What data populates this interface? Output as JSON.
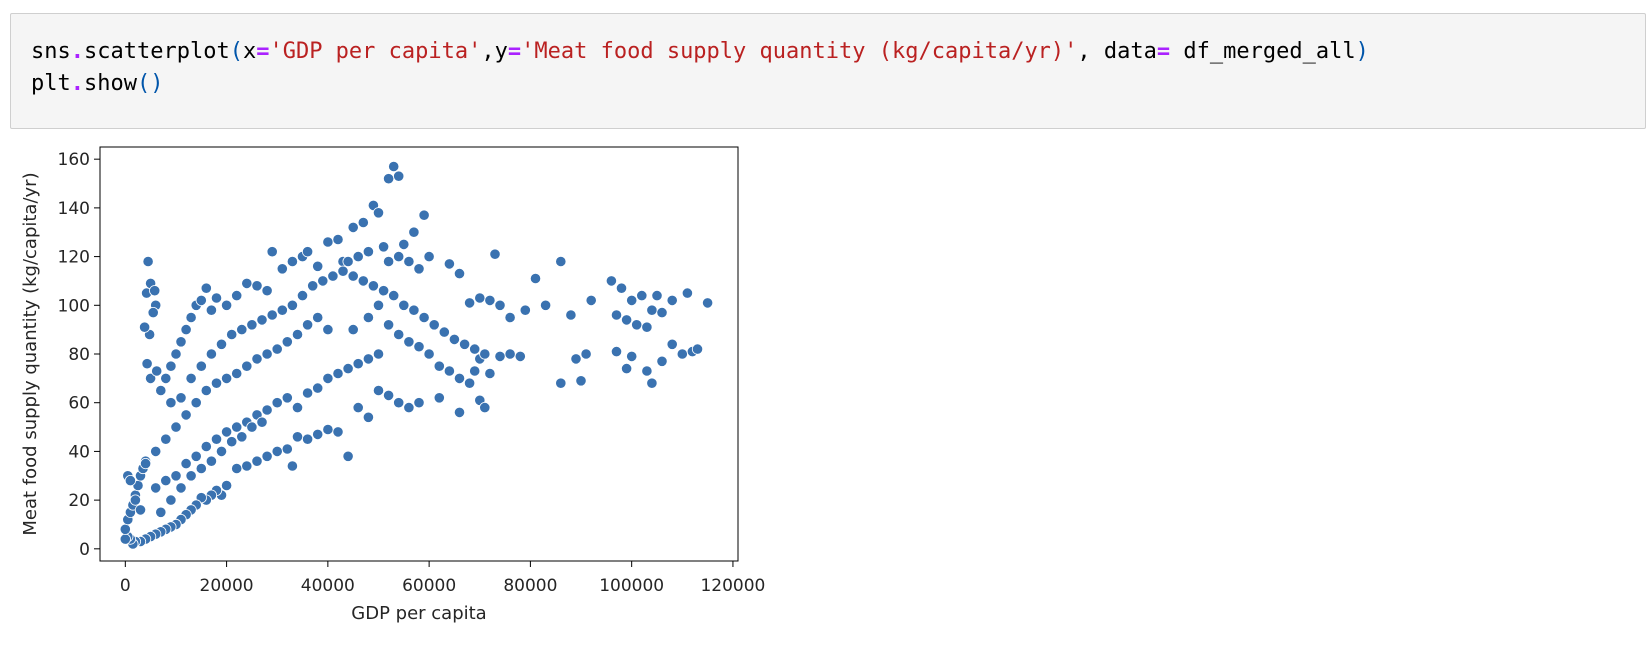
{
  "notebook": {
    "code_lines": [
      {
        "tokens": [
          {
            "text": "sns",
            "cls": "plain"
          },
          {
            "text": ".",
            "cls": "op"
          },
          {
            "text": "scatterplot",
            "cls": "plain"
          },
          {
            "text": "(",
            "cls": "par"
          },
          {
            "text": "x",
            "cls": "plain"
          },
          {
            "text": "=",
            "cls": "op"
          },
          {
            "text": "'GDP per capita'",
            "cls": "str"
          },
          {
            "text": ",",
            "cls": "plain"
          },
          {
            "text": "y",
            "cls": "plain"
          },
          {
            "text": "=",
            "cls": "op"
          },
          {
            "text": "'Meat food supply quantity (kg/capita/yr)'",
            "cls": "str"
          },
          {
            "text": ", ",
            "cls": "plain"
          },
          {
            "text": "data",
            "cls": "plain"
          },
          {
            "text": "=",
            "cls": "op"
          },
          {
            "text": " df_merged_all",
            "cls": "plain"
          },
          {
            "text": ")",
            "cls": "par"
          }
        ]
      },
      {
        "tokens": [
          {
            "text": "plt",
            "cls": "plain"
          },
          {
            "text": ".",
            "cls": "op"
          },
          {
            "text": "show",
            "cls": "plain"
          },
          {
            "text": "()",
            "cls": "par"
          }
        ]
      }
    ]
  },
  "colors": {
    "point_fill": "#3a72b0",
    "point_edge": "#ffffff",
    "cell_background": "#f5f5f5",
    "string": "#ba2121",
    "operator": "#aa22ff"
  },
  "chart_data": {
    "type": "scatter",
    "title": "",
    "xlabel": "GDP per capita",
    "ylabel": "Meat food supply quantity (kg/capita/yr)",
    "xlim": [
      -5000,
      121000
    ],
    "ylim": [
      -5,
      165
    ],
    "xticks": [
      0,
      20000,
      40000,
      60000,
      80000,
      100000,
      120000
    ],
    "xtick_labels": [
      "0",
      "20000",
      "40000",
      "60000",
      "80000",
      "100000",
      "120000"
    ],
    "yticks": [
      0,
      20,
      40,
      60,
      80,
      100,
      120,
      140,
      160
    ],
    "ytick_labels": [
      "0",
      "20",
      "40",
      "60",
      "80",
      "100",
      "120",
      "140",
      "160"
    ],
    "grid": false,
    "series": [
      {
        "points": [
          [
            4500,
            118
          ],
          [
            4200,
            105
          ],
          [
            5000,
            109
          ],
          [
            5800,
            106
          ],
          [
            6000,
            100
          ],
          [
            5500,
            97
          ],
          [
            4800,
            88
          ],
          [
            3800,
            91
          ],
          [
            4300,
            76
          ],
          [
            5000,
            70
          ],
          [
            6200,
            73
          ],
          [
            7000,
            65
          ],
          [
            8000,
            70
          ],
          [
            9000,
            75
          ],
          [
            10000,
            80
          ],
          [
            11000,
            85
          ],
          [
            12000,
            90
          ],
          [
            13000,
            95
          ],
          [
            14000,
            100
          ],
          [
            15000,
            102
          ],
          [
            16000,
            107
          ],
          [
            17000,
            98
          ],
          [
            18000,
            103
          ],
          [
            20000,
            100
          ],
          [
            22000,
            104
          ],
          [
            24000,
            109
          ],
          [
            26000,
            108
          ],
          [
            28000,
            106
          ],
          [
            29000,
            122
          ],
          [
            31000,
            115
          ],
          [
            33000,
            118
          ],
          [
            35000,
            120
          ],
          [
            36000,
            122
          ],
          [
            38000,
            116
          ],
          [
            40000,
            126
          ],
          [
            42000,
            127
          ],
          [
            43000,
            118
          ],
          [
            45000,
            132
          ],
          [
            47000,
            134
          ],
          [
            49000,
            141
          ],
          [
            50000,
            138
          ],
          [
            51000,
            124
          ],
          [
            52000,
            152
          ],
          [
            53000,
            157
          ],
          [
            54000,
            153
          ],
          [
            55000,
            125
          ],
          [
            57000,
            130
          ],
          [
            59000,
            137
          ],
          [
            60000,
            120
          ],
          [
            58000,
            115
          ],
          [
            56000,
            118
          ],
          [
            54000,
            120
          ],
          [
            52000,
            118
          ],
          [
            48000,
            122
          ],
          [
            46000,
            120
          ],
          [
            44000,
            118
          ],
          [
            64000,
            117
          ],
          [
            66000,
            113
          ],
          [
            73000,
            121
          ],
          [
            81000,
            111
          ],
          [
            86000,
            118
          ],
          [
            68000,
            101
          ],
          [
            70000,
            103
          ],
          [
            72000,
            102
          ],
          [
            74000,
            100
          ],
          [
            76000,
            95
          ],
          [
            79000,
            98
          ],
          [
            83000,
            100
          ],
          [
            88000,
            96
          ],
          [
            92000,
            102
          ],
          [
            96000,
            110
          ],
          [
            98000,
            107
          ],
          [
            100000,
            102
          ],
          [
            102000,
            104
          ],
          [
            105000,
            104
          ],
          [
            108000,
            102
          ],
          [
            111000,
            105
          ],
          [
            115000,
            101
          ],
          [
            104000,
            98
          ],
          [
            106000,
            97
          ],
          [
            97000,
            96
          ],
          [
            99000,
            94
          ],
          [
            101000,
            92
          ],
          [
            103000,
            91
          ],
          [
            97000,
            81
          ],
          [
            99000,
            74
          ],
          [
            100000,
            79
          ],
          [
            103000,
            73
          ],
          [
            104000,
            68
          ],
          [
            106000,
            77
          ],
          [
            108000,
            84
          ],
          [
            110000,
            80
          ],
          [
            112000,
            81
          ],
          [
            113000,
            82
          ],
          [
            89000,
            78
          ],
          [
            91000,
            80
          ],
          [
            90000,
            69
          ],
          [
            86000,
            68
          ],
          [
            78000,
            79
          ],
          [
            76000,
            80
          ],
          [
            74000,
            79
          ],
          [
            72000,
            72
          ],
          [
            70000,
            61
          ],
          [
            71000,
            58
          ],
          [
            66000,
            56
          ],
          [
            62000,
            62
          ],
          [
            58000,
            60
          ],
          [
            56000,
            58
          ],
          [
            54000,
            60
          ],
          [
            52000,
            63
          ],
          [
            50000,
            65
          ],
          [
            48000,
            54
          ],
          [
            46000,
            58
          ],
          [
            44000,
            38
          ],
          [
            42000,
            48
          ],
          [
            40000,
            49
          ],
          [
            38000,
            47
          ],
          [
            36000,
            45
          ],
          [
            34000,
            46
          ],
          [
            33000,
            34
          ],
          [
            32000,
            41
          ],
          [
            30000,
            40
          ],
          [
            28000,
            38
          ],
          [
            26000,
            36
          ],
          [
            24000,
            34
          ],
          [
            22000,
            33
          ],
          [
            20000,
            26
          ],
          [
            19000,
            22
          ],
          [
            18000,
            24
          ],
          [
            17000,
            22
          ],
          [
            16000,
            20
          ],
          [
            15000,
            21
          ],
          [
            14000,
            18
          ],
          [
            13000,
            16
          ],
          [
            12000,
            14
          ],
          [
            11000,
            12
          ],
          [
            10000,
            10
          ],
          [
            9000,
            9
          ],
          [
            8000,
            8
          ],
          [
            7000,
            7
          ],
          [
            6000,
            6
          ],
          [
            5000,
            5
          ],
          [
            4000,
            4
          ],
          [
            3000,
            3
          ],
          [
            2000,
            3
          ],
          [
            1500,
            2
          ],
          [
            1000,
            4
          ],
          [
            500,
            5
          ],
          [
            0,
            4
          ],
          [
            0,
            8
          ],
          [
            500,
            12
          ],
          [
            1000,
            15
          ],
          [
            1500,
            18
          ],
          [
            2000,
            22
          ],
          [
            2500,
            26
          ],
          [
            3000,
            30
          ],
          [
            3500,
            33
          ],
          [
            4000,
            36
          ],
          [
            500,
            30
          ],
          [
            1000,
            28
          ],
          [
            2000,
            20
          ],
          [
            3000,
            16
          ],
          [
            45000,
            90
          ],
          [
            48000,
            95
          ],
          [
            50000,
            100
          ],
          [
            52000,
            92
          ],
          [
            54000,
            88
          ],
          [
            56000,
            85
          ],
          [
            58000,
            83
          ],
          [
            60000,
            80
          ],
          [
            62000,
            75
          ],
          [
            64000,
            73
          ],
          [
            66000,
            70
          ],
          [
            68000,
            68
          ],
          [
            69000,
            73
          ],
          [
            70000,
            78
          ],
          [
            40000,
            90
          ],
          [
            38000,
            95
          ],
          [
            36000,
            92
          ],
          [
            34000,
            88
          ],
          [
            32000,
            85
          ],
          [
            30000,
            82
          ],
          [
            28000,
            80
          ],
          [
            26000,
            78
          ],
          [
            24000,
            75
          ],
          [
            22000,
            72
          ],
          [
            20000,
            70
          ],
          [
            18000,
            68
          ],
          [
            16000,
            65
          ],
          [
            14000,
            60
          ],
          [
            12000,
            55
          ],
          [
            10000,
            50
          ],
          [
            8000,
            45
          ],
          [
            6000,
            40
          ],
          [
            4000,
            35
          ],
          [
            9000,
            60
          ],
          [
            11000,
            62
          ],
          [
            13000,
            70
          ],
          [
            15000,
            75
          ],
          [
            17000,
            80
          ],
          [
            19000,
            84
          ],
          [
            21000,
            88
          ],
          [
            23000,
            90
          ],
          [
            25000,
            92
          ],
          [
            27000,
            94
          ],
          [
            29000,
            96
          ],
          [
            31000,
            98
          ],
          [
            33000,
            100
          ],
          [
            35000,
            104
          ],
          [
            37000,
            108
          ],
          [
            39000,
            110
          ],
          [
            41000,
            112
          ],
          [
            43000,
            114
          ],
          [
            45000,
            112
          ],
          [
            47000,
            110
          ],
          [
            49000,
            108
          ],
          [
            51000,
            106
          ],
          [
            53000,
            104
          ],
          [
            55000,
            100
          ],
          [
            57000,
            98
          ],
          [
            59000,
            95
          ],
          [
            61000,
            92
          ],
          [
            63000,
            89
          ],
          [
            65000,
            86
          ],
          [
            67000,
            84
          ],
          [
            69000,
            82
          ],
          [
            71000,
            80
          ],
          [
            40000,
            70
          ],
          [
            42000,
            72
          ],
          [
            44000,
            74
          ],
          [
            46000,
            76
          ],
          [
            48000,
            78
          ],
          [
            50000,
            80
          ],
          [
            30000,
            60
          ],
          [
            32000,
            62
          ],
          [
            34000,
            58
          ],
          [
            36000,
            64
          ],
          [
            38000,
            66
          ],
          [
            26000,
            55
          ],
          [
            28000,
            57
          ],
          [
            24000,
            52
          ],
          [
            22000,
            50
          ],
          [
            20000,
            48
          ],
          [
            18000,
            45
          ],
          [
            16000,
            42
          ],
          [
            14000,
            38
          ],
          [
            12000,
            35
          ],
          [
            10000,
            30
          ],
          [
            8000,
            28
          ],
          [
            6000,
            25
          ],
          [
            7000,
            15
          ],
          [
            9000,
            20
          ],
          [
            11000,
            25
          ],
          [
            13000,
            30
          ],
          [
            15000,
            33
          ],
          [
            17000,
            36
          ],
          [
            19000,
            40
          ],
          [
            21000,
            44
          ],
          [
            23000,
            46
          ],
          [
            25000,
            50
          ],
          [
            27000,
            52
          ]
        ]
      }
    ]
  }
}
